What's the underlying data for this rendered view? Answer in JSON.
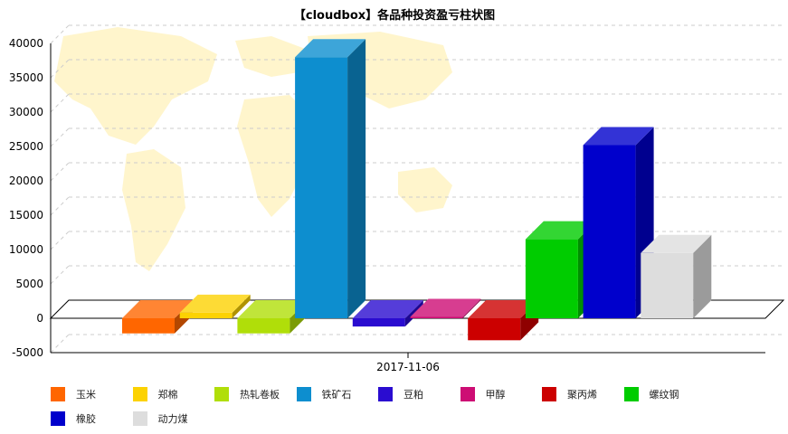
{
  "chart_data": {
    "type": "bar",
    "title": "【cloudbox】各品种投资盈亏柱状图",
    "categories": [
      "2017-11-06"
    ],
    "ylim": [
      -5000,
      40000
    ],
    "yticks": [
      -5000,
      0,
      5000,
      10000,
      15000,
      20000,
      25000,
      30000,
      35000,
      40000
    ],
    "grid": true,
    "legend_position": "bottom",
    "series": [
      {
        "name": "玉米",
        "color": "#FF6600",
        "values": [
          -2200
        ]
      },
      {
        "name": "郑棉",
        "color": "#FCD202",
        "values": [
          800
        ]
      },
      {
        "name": "热轧卷板",
        "color": "#B0DE09",
        "values": [
          -2200
        ]
      },
      {
        "name": "铁矿石",
        "color": "#0D8ECF",
        "values": [
          38000
        ]
      },
      {
        "name": "豆粕",
        "color": "#2A0CD0",
        "values": [
          -1200
        ]
      },
      {
        "name": "甲醇",
        "color": "#CD0D74",
        "values": [
          200
        ]
      },
      {
        "name": "聚丙烯",
        "color": "#CC0000",
        "values": [
          -3200
        ]
      },
      {
        "name": "螺纹钢",
        "color": "#00CC00",
        "values": [
          11500
        ]
      },
      {
        "name": "橡胶",
        "color": "#0000CC",
        "values": [
          25200
        ]
      },
      {
        "name": "动力煤",
        "color": "#DDDDDD",
        "values": [
          9500
        ]
      }
    ]
  }
}
